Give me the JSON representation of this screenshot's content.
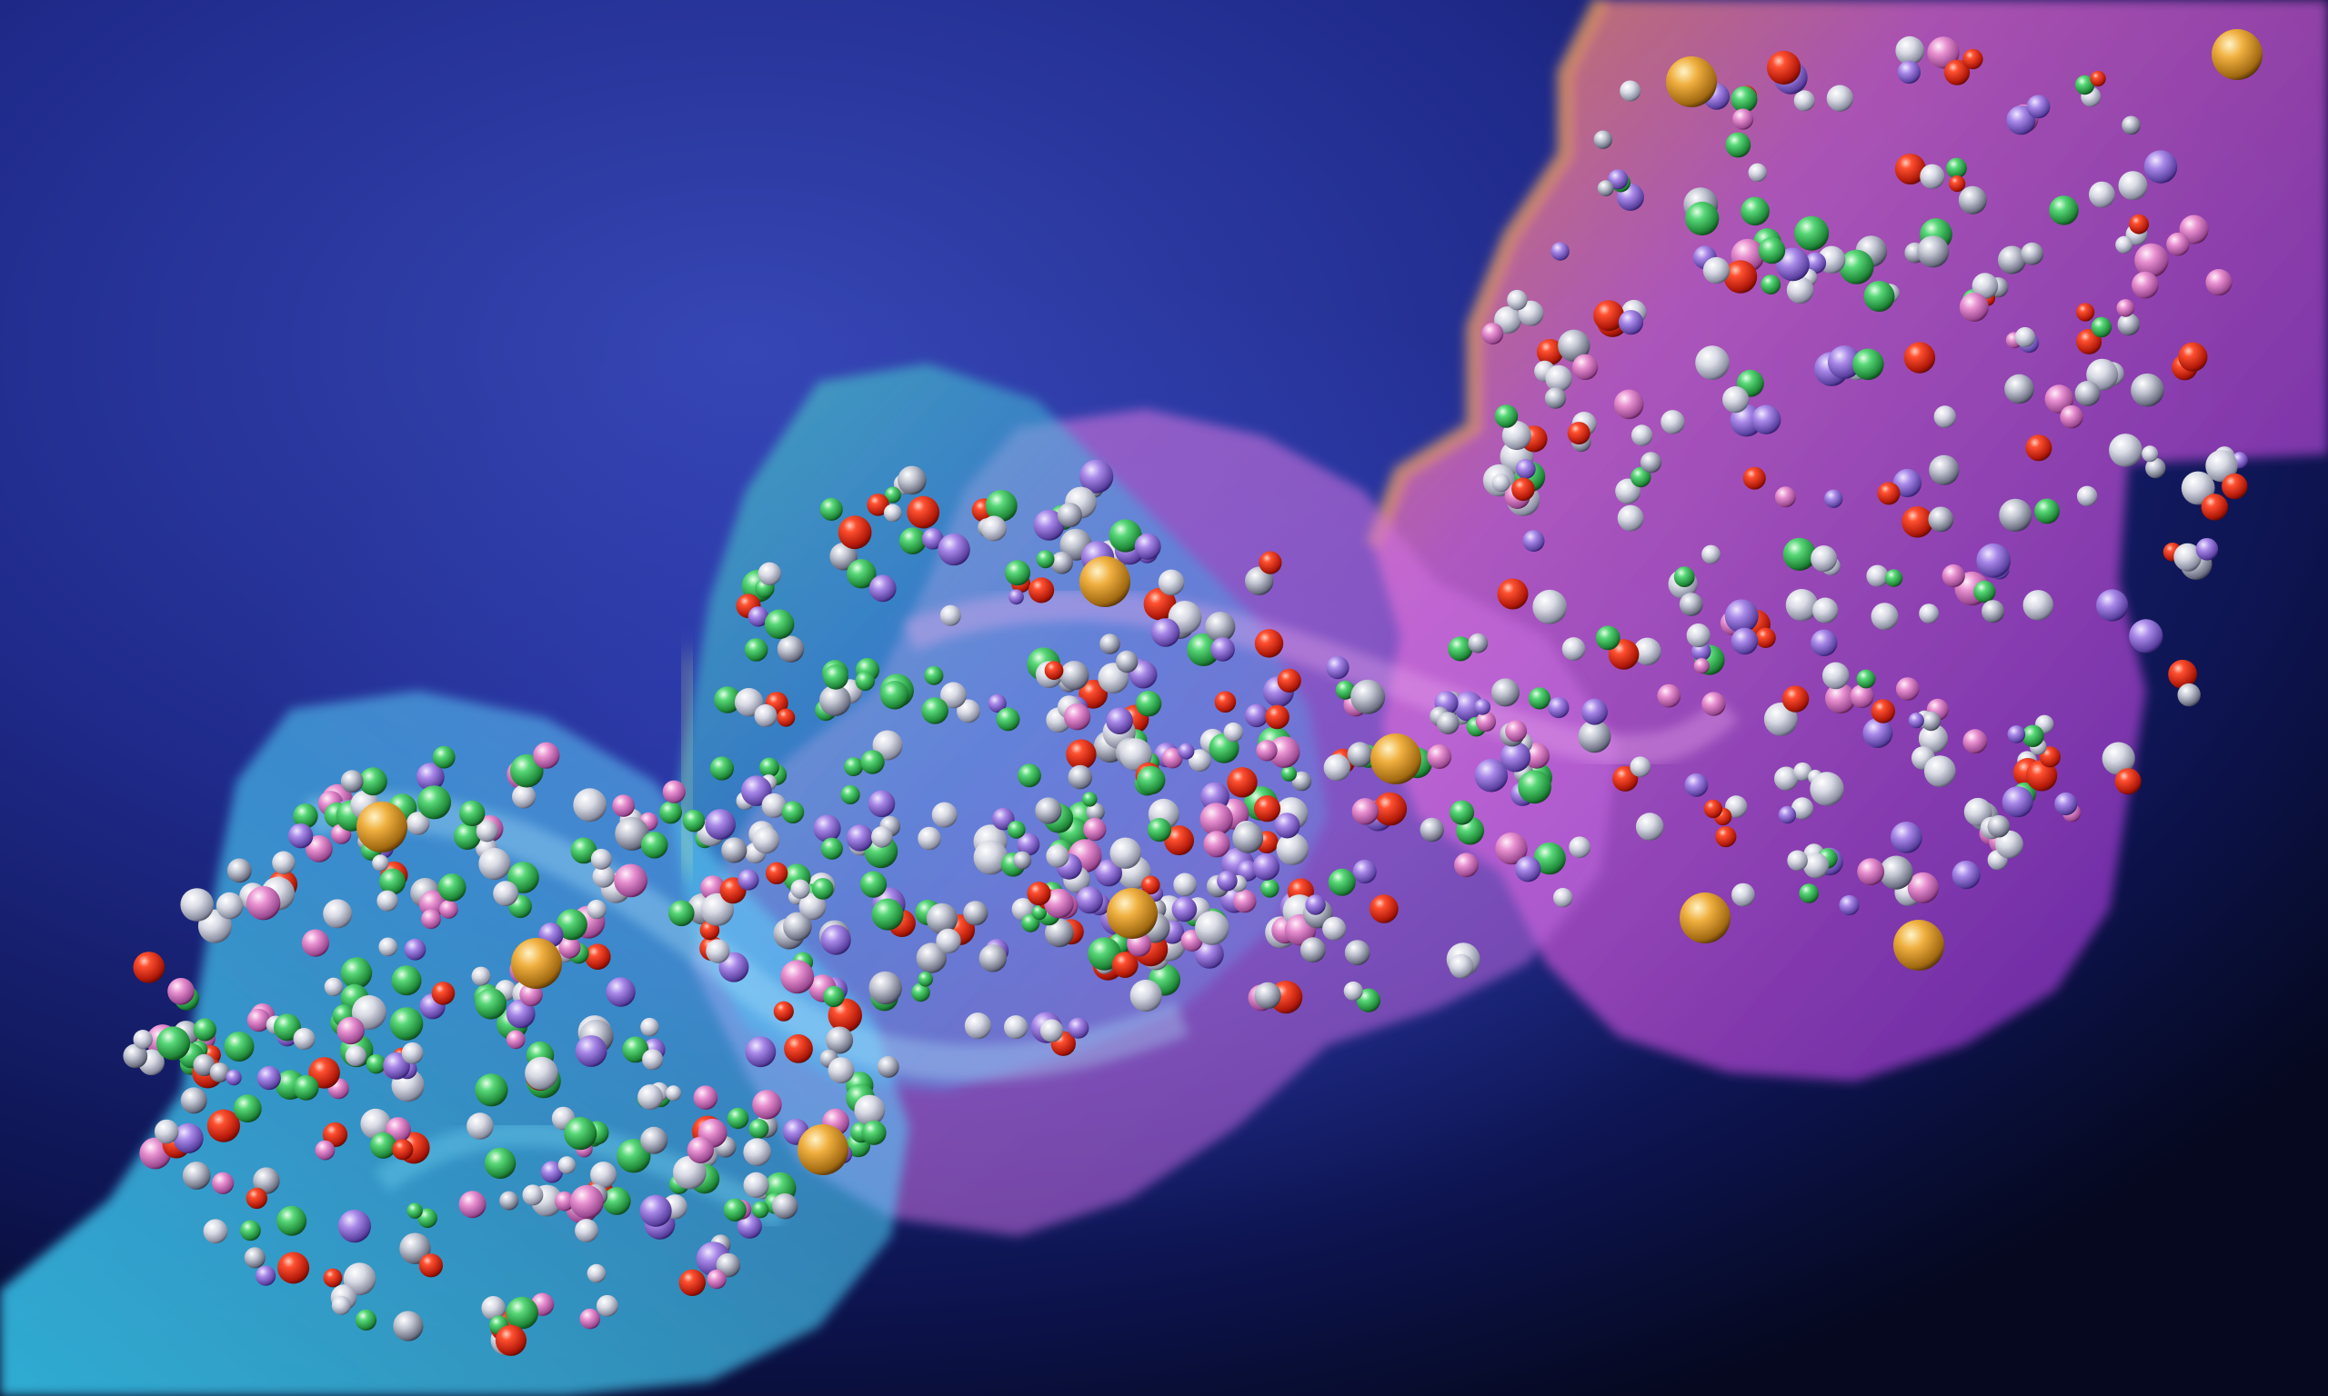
{
  "scene": {
    "subject": "molecule-surface-with-atoms",
    "colors": {
      "background_center": "#2a3aa8",
      "background_edge": "#05081e",
      "surface_cyan": "#4fd2ff",
      "surface_teal": "#38c9b8",
      "surface_pink": "#e870d8",
      "surface_magenta": "#c040d0",
      "surface_orange": "#ff9a3c",
      "atom_red": "#e02818",
      "atom_green": "#3cc060",
      "atom_white": "#e8e8ec",
      "atom_purple": "#9a78d8",
      "atom_gold": "#e0a030",
      "atom_silver": "#b8bcc8"
    },
    "surface_regions": [
      {
        "name": "cyan-lobe-left",
        "color": "surface_cyan"
      },
      {
        "name": "teal-lobe-center",
        "color": "surface_teal"
      },
      {
        "name": "pink-lobe-center",
        "color": "surface_pink"
      },
      {
        "name": "magenta-lobe-right",
        "color": "surface_magenta"
      }
    ],
    "atom_types": [
      "red",
      "green",
      "white",
      "purple",
      "gold",
      "silver"
    ]
  }
}
